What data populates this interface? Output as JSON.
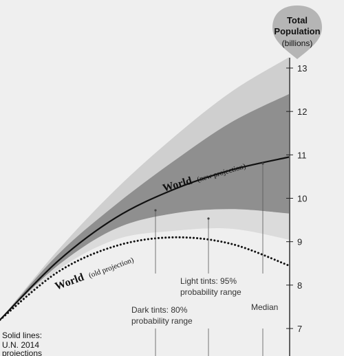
{
  "chart_data": {
    "type": "area",
    "y_axis": {
      "title_line1": "Total",
      "title_line2": "Population",
      "unit": "(billions)",
      "ticks": [
        7,
        8,
        9,
        10,
        11,
        12,
        13
      ],
      "ylim": [
        6.55,
        13.2
      ],
      "position": "right"
    },
    "x_progress": [
      0,
      0.2,
      0.4,
      0.6,
      0.8,
      1.0
    ],
    "series": [
      {
        "name": "World",
        "sublabel": "(new projection)",
        "style": "solid",
        "values": [
          7.2,
          8.55,
          9.55,
          10.2,
          10.65,
          10.95
        ]
      },
      {
        "name": "World",
        "sublabel": "(old projection)",
        "style": "dotted",
        "values": [
          7.2,
          8.3,
          8.9,
          9.1,
          8.95,
          8.45
        ]
      }
    ],
    "bands": [
      {
        "name": "Light tints: 95% probability range",
        "lower": [
          7.2,
          8.35,
          9.05,
          9.25,
          9.3,
          9.05
        ],
        "upper": [
          7.2,
          8.8,
          10.2,
          11.4,
          12.45,
          13.25
        ]
      },
      {
        "name": "Dark tints: 80% probability range",
        "lower": [
          7.2,
          8.45,
          9.3,
          9.65,
          9.75,
          9.65
        ],
        "upper": [
          7.2,
          8.7,
          9.85,
          10.85,
          11.75,
          12.4
        ]
      }
    ],
    "annotations": {
      "dark": [
        "Dark tints: 80%",
        "probability range"
      ],
      "light": [
        "Light tints: 95%",
        "probability range"
      ],
      "median": "Median",
      "solid": [
        "Solid lines:",
        "U.N. 2014",
        "projections"
      ]
    },
    "colors": {
      "background": "#efefef",
      "light_band": "#cfcfcf",
      "dark_band": "#8f8f8f",
      "inner_light": "#e6e6e6",
      "median_line": "#111111",
      "axis": "#222222",
      "badge": "#b5b5b5"
    }
  }
}
